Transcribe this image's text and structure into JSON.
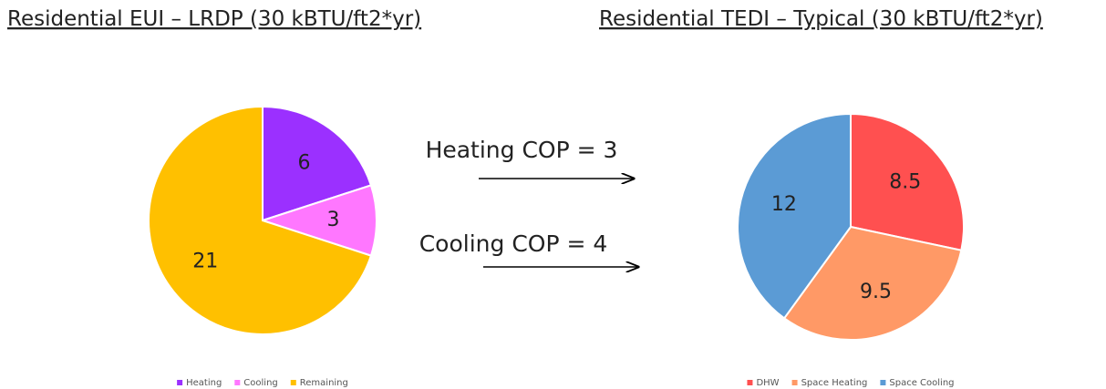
{
  "chart_data": [
    {
      "type": "pie",
      "title": "Residential EUI – LRDP (30 kBTU/ft2*yr)",
      "categories": [
        "Heating",
        "Cooling",
        "Remaining"
      ],
      "values": [
        6,
        3,
        21
      ],
      "colors": [
        "#9b30ff",
        "#ff77ff",
        "#ffc000"
      ],
      "legend": "bottom"
    },
    {
      "type": "pie",
      "title": "Residential TEDI – Typical (30 kBTU/ft2*yr)",
      "categories": [
        "DHW",
        "Space Heating",
        "Space Cooling"
      ],
      "values": [
        8.5,
        9.5,
        12
      ],
      "colors": [
        "#ff5050",
        "#ff9966",
        "#5b9bd5"
      ],
      "legend": "bottom"
    }
  ],
  "annotations": [
    "Heating COP = 3",
    "Cooling COP = 4"
  ]
}
